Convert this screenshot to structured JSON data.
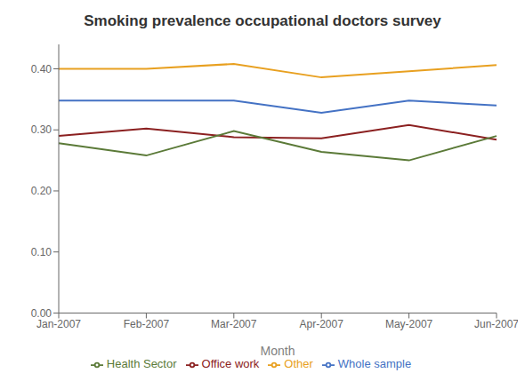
{
  "chart_data": {
    "type": "line",
    "title": "Smoking prevalence occupational doctors survey",
    "x_label": "Month",
    "categories": [
      "Jan-2007",
      "Feb-2007",
      "Mar-2007",
      "Apr-2007",
      "May-2007",
      "Jun-2007"
    ],
    "series": [
      {
        "name": "Whole sample",
        "color": "#4472C4",
        "values": [
          0.348,
          0.348,
          0.348,
          0.328,
          0.348,
          0.34
        ]
      },
      {
        "name": "Office work",
        "color": "#8B2020",
        "values": [
          0.29,
          0.302,
          0.288,
          0.286,
          0.308,
          0.284
        ]
      },
      {
        "name": "Health Sector",
        "color": "#5b7a38",
        "values": [
          0.278,
          0.258,
          0.298,
          0.264,
          0.25,
          0.29
        ]
      },
      {
        "name": "Other",
        "color": "#E8A020",
        "values": [
          0.4,
          0.4,
          0.408,
          0.386,
          0.396,
          0.406
        ]
      }
    ],
    "ylim": [
      0.0,
      0.44
    ],
    "yticks": [
      {
        "value": 0.0,
        "label": "0.00"
      },
      {
        "value": 0.1,
        "label": "0.10"
      },
      {
        "value": 0.2,
        "label": "0.20"
      },
      {
        "value": 0.3,
        "label": "0.30"
      },
      {
        "value": 0.4,
        "label": "0.40"
      }
    ],
    "grid": false,
    "legend": "bottom"
  }
}
